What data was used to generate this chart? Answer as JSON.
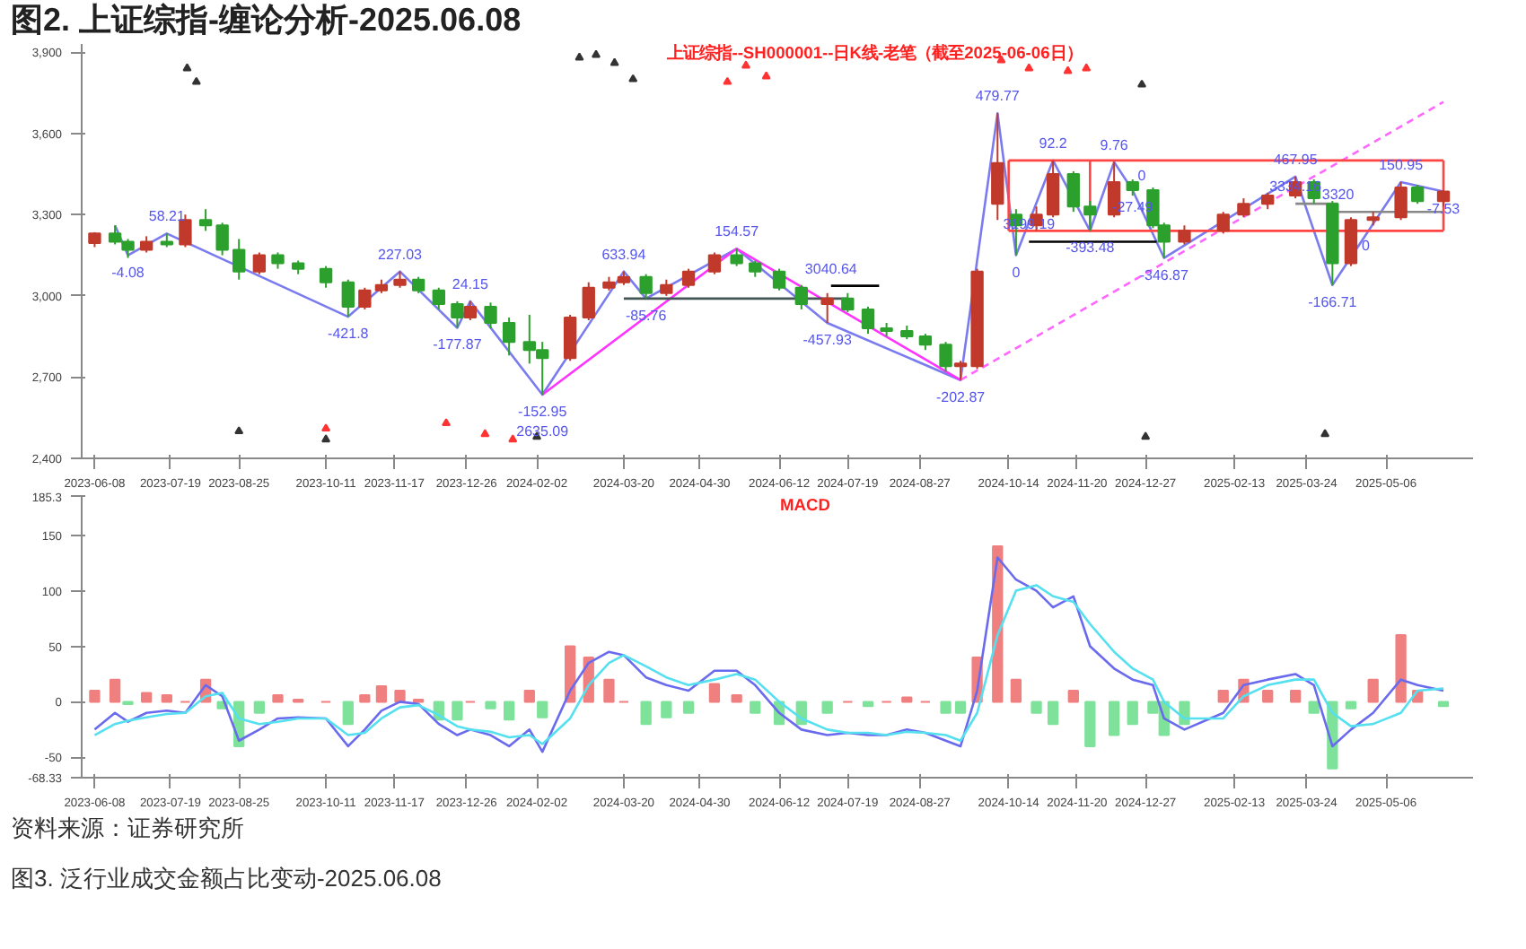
{
  "chart_data": [
    {
      "type": "candlestick",
      "title": "图2. 上证综指-缠论分析-2025.06.08",
      "subtitle": "上证综指--SH000001--日K线-老笔（截至2025-06-06日）",
      "x": [
        "2023-06-08",
        "2023-06-19",
        "2023-06-26",
        "2023-07-06",
        "2023-07-17",
        "2023-07-27",
        "2023-08-07",
        "2023-08-16",
        "2023-08-25",
        "2023-09-05",
        "2023-09-15",
        "2023-09-26",
        "2023-10-11",
        "2023-10-23",
        "2023-11-01",
        "2023-11-10",
        "2023-11-20",
        "2023-11-30",
        "2023-12-11",
        "2023-12-21",
        "2023-12-28",
        "2024-01-08",
        "2024-01-18",
        "2024-01-29",
        "2024-02-05",
        "2024-02-20",
        "2024-03-01",
        "2024-03-12",
        "2024-03-20",
        "2024-04-01",
        "2024-04-12",
        "2024-04-24",
        "2024-05-08",
        "2024-05-20",
        "2024-05-30",
        "2024-06-12",
        "2024-06-24",
        "2024-07-08",
        "2024-07-19",
        "2024-07-30",
        "2024-08-09",
        "2024-08-20",
        "2024-08-30",
        "2024-09-10",
        "2024-09-18",
        "2024-09-27",
        "2024-10-08",
        "2024-10-18",
        "2024-10-29",
        "2024-11-07",
        "2024-11-18",
        "2024-11-27",
        "2024-12-10",
        "2024-12-20",
        "2024-12-31",
        "2025-01-06",
        "2025-01-17",
        "2025-02-07",
        "2025-02-18",
        "2025-03-03",
        "2025-03-18",
        "2025-03-28",
        "2025-04-07",
        "2025-04-17",
        "2025-04-29",
        "2025-05-14",
        "2025-05-23",
        "2025-06-06"
      ],
      "ohlc": [
        [
          3195,
          3235,
          3180,
          3230
        ],
        [
          3230,
          3260,
          3190,
          3200
        ],
        [
          3200,
          3210,
          3140,
          3170
        ],
        [
          3170,
          3220,
          3160,
          3200
        ],
        [
          3200,
          3230,
          3180,
          3190
        ],
        [
          3190,
          3300,
          3180,
          3280
        ],
        [
          3280,
          3320,
          3240,
          3260
        ],
        [
          3260,
          3270,
          3150,
          3170
        ],
        [
          3170,
          3210,
          3060,
          3090
        ],
        [
          3090,
          3160,
          3080,
          3150
        ],
        [
          3150,
          3160,
          3100,
          3120
        ],
        [
          3120,
          3130,
          3080,
          3100
        ],
        [
          3100,
          3110,
          3030,
          3050
        ],
        [
          3050,
          3060,
          2923,
          2960
        ],
        [
          2960,
          3030,
          2950,
          3020
        ],
        [
          3020,
          3060,
          3010,
          3040
        ],
        [
          3040,
          3090,
          3030,
          3060
        ],
        [
          3060,
          3070,
          3010,
          3020
        ],
        [
          3020,
          3030,
          2950,
          2970
        ],
        [
          2970,
          2980,
          2882,
          2920
        ],
        [
          2920,
          2980,
          2910,
          2960
        ],
        [
          2960,
          2975,
          2880,
          2900
        ],
        [
          2900,
          2920,
          2780,
          2830
        ],
        [
          2830,
          2930,
          2750,
          2800
        ],
        [
          2800,
          2830,
          2635,
          2770
        ],
        [
          2770,
          2930,
          2760,
          2920
        ],
        [
          2920,
          3050,
          2910,
          3030
        ],
        [
          3030,
          3070,
          3020,
          3050
        ],
        [
          3050,
          3090,
          3040,
          3070
        ],
        [
          3070,
          3080,
          2990,
          3010
        ],
        [
          3010,
          3060,
          3000,
          3040
        ],
        [
          3040,
          3100,
          3030,
          3090
        ],
        [
          3090,
          3160,
          3080,
          3150
        ],
        [
          3150,
          3174,
          3110,
          3120
        ],
        [
          3120,
          3130,
          3070,
          3090
        ],
        [
          3090,
          3100,
          3020,
          3030
        ],
        [
          3030,
          3040,
          2950,
          2970
        ],
        [
          2970,
          3010,
          2900,
          2990
        ],
        [
          2990,
          3010,
          2940,
          2950
        ],
        [
          2950,
          2960,
          2860,
          2880
        ],
        [
          2880,
          2900,
          2850,
          2870
        ],
        [
          2870,
          2890,
          2840,
          2850
        ],
        [
          2850,
          2860,
          2800,
          2820
        ],
        [
          2820,
          2830,
          2720,
          2740
        ],
        [
          2740,
          2760,
          2689,
          2750
        ],
        [
          2740,
          3100,
          2730,
          3090
        ],
        [
          3340,
          3674,
          3280,
          3490
        ],
        [
          3300,
          3320,
          3150,
          3260
        ],
        [
          3260,
          3330,
          3240,
          3300
        ],
        [
          3300,
          3500,
          3290,
          3450
        ],
        [
          3450,
          3460,
          3310,
          3330
        ],
        [
          3330,
          3350,
          3240,
          3300
        ],
        [
          3300,
          3494,
          3290,
          3420
        ],
        [
          3420,
          3430,
          3370,
          3390
        ],
        [
          3390,
          3400,
          3250,
          3260
        ],
        [
          3260,
          3270,
          3140,
          3200
        ],
        [
          3200,
          3260,
          3190,
          3240
        ],
        [
          3240,
          3310,
          3230,
          3300
        ],
        [
          3300,
          3360,
          3290,
          3340
        ],
        [
          3340,
          3380,
          3320,
          3370
        ],
        [
          3370,
          3440,
          3360,
          3420
        ],
        [
          3420,
          3430,
          3340,
          3360
        ],
        [
          3340,
          3350,
          3040,
          3120
        ],
        [
          3120,
          3290,
          3110,
          3280
        ],
        [
          3280,
          3310,
          3260,
          3290
        ],
        [
          3290,
          3420,
          3280,
          3400
        ],
        [
          3400,
          3410,
          3340,
          3350
        ],
        [
          3350,
          3390,
          3330,
          3385
        ]
      ],
      "colors": [
        "#c0392b",
        "#2ca02c",
        "#2ca02c",
        "#c0392b",
        "#2ca02c",
        "#c0392b",
        "#2ca02c",
        "#2ca02c",
        "#2ca02c",
        "#c0392b",
        "#2ca02c",
        "#2ca02c",
        "#2ca02c",
        "#2ca02c",
        "#c0392b",
        "#c0392b",
        "#c0392b",
        "#2ca02c",
        "#2ca02c",
        "#2ca02c",
        "#c0392b",
        "#2ca02c",
        "#2ca02c",
        "#2ca02c",
        "#2ca02c",
        "#c0392b",
        "#c0392b",
        "#c0392b",
        "#c0392b",
        "#2ca02c",
        "#c0392b",
        "#c0392b",
        "#c0392b",
        "#2ca02c",
        "#2ca02c",
        "#2ca02c",
        "#2ca02c",
        "#c0392b",
        "#2ca02c",
        "#2ca02c",
        "#2ca02c",
        "#2ca02c",
        "#2ca02c",
        "#2ca02c",
        "#c0392b",
        "#c0392b",
        "#c0392b",
        "#2ca02c",
        "#c0392b",
        "#c0392b",
        "#2ca02c",
        "#2ca02c",
        "#c0392b",
        "#2ca02c",
        "#2ca02c",
        "#2ca02c",
        "#c0392b",
        "#c0392b",
        "#c0392b",
        "#c0392b",
        "#c0392b",
        "#2ca02c",
        "#2ca02c",
        "#c0392b",
        "#c0392b",
        "#c0392b",
        "#2ca02c",
        "#c0392b"
      ],
      "series": [
        {
          "type": "line",
          "color": "#7b7bf0",
          "line_style": "solid",
          "x": [
            "2023-06-19",
            "2023-06-26",
            "2023-07-17",
            "2023-10-23",
            "2023-11-20",
            "2023-12-21",
            "2023-12-28",
            "2024-02-05",
            "2024-03-20",
            "2024-04-01",
            "2024-05-20",
            "2024-07-08",
            "2024-09-18",
            "2024-10-08",
            "2024-10-18",
            "2024-11-07",
            "2024-11-27",
            "2024-12-10",
            "2024-12-20",
            "2025-01-06",
            "2025-03-18",
            "2025-04-07",
            "2025-05-14",
            "2025-06-06"
          ],
          "values": [
            3260,
            3150,
            3230,
            2923,
            3090,
            2882,
            2980,
            2635,
            3090,
            2990,
            3174,
            2900,
            2689,
            3674,
            3150,
            3500,
            3240,
            3494,
            3390,
            3140,
            3440,
            3040,
            3420,
            3385
          ]
        },
        {
          "type": "line",
          "color": "#ff33ff",
          "line_style": "solid",
          "x": [
            "2024-02-05",
            "2024-05-20",
            "2024-09-18"
          ],
          "values": [
            2635,
            3174,
            2689
          ]
        },
        {
          "type": "line",
          "color": "#ff66ff",
          "line_style": "dashed",
          "x": [
            "2024-09-18",
            "2025-06-06"
          ],
          "values": [
            2689,
            3716
          ]
        },
        {
          "type": "line",
          "color": "#ff4444",
          "line_style": "solid",
          "x": [
            "2024-10-14",
            "2025-06-06"
          ],
          "values": [
            3500,
            3500
          ]
        },
        {
          "type": "line",
          "color": "#ff4444",
          "line_style": "solid",
          "x": [
            "2024-10-14",
            "2025-06-06"
          ],
          "values": [
            3240,
            3240
          ]
        },
        {
          "type": "line",
          "color": "#ff4444",
          "line_style": "solid",
          "x": [
            "2024-10-14",
            "2024-10-14"
          ],
          "values": [
            3240,
            3500
          ]
        },
        {
          "type": "line",
          "color": "#ff4444",
          "line_style": "solid",
          "x": [
            "2025-06-06",
            "2025-06-06"
          ],
          "values": [
            3240,
            3500
          ]
        },
        {
          "type": "line",
          "color": "#ff4444",
          "line_style": "solid",
          "x": [
            "2024-11-27",
            "2024-11-27"
          ],
          "values": [
            3240,
            3500
          ]
        },
        {
          "type": "line",
          "color": "#445555",
          "line_style": "solid",
          "x": [
            "2024-03-20",
            "2024-07-19"
          ],
          "values": [
            2990,
            2990
          ]
        },
        {
          "type": "line",
          "color": "#000000",
          "line_style": "solid",
          "x": [
            "2024-07-10",
            "2024-08-05"
          ],
          "values": [
            3037,
            3037
          ]
        },
        {
          "type": "line",
          "color": "#000000",
          "line_style": "solid",
          "x": [
            "2024-10-25",
            "2025-01-02"
          ],
          "values": [
            3200,
            3200
          ]
        },
        {
          "type": "line",
          "color": "#888888",
          "line_style": "solid",
          "x": [
            "2025-03-18",
            "2025-04-10"
          ],
          "values": [
            3340,
            3340
          ]
        },
        {
          "type": "line",
          "color": "#888888",
          "line_style": "solid",
          "x": [
            "2025-04-10",
            "2025-06-06"
          ],
          "values": [
            3310,
            3310
          ]
        },
        {
          "type": "scatter",
          "color": "#333333",
          "marker": "triangle",
          "x": [
            "2023-07-28",
            "2023-08-02",
            "2024-02-25",
            "2024-03-05",
            "2024-03-15",
            "2024-03-25",
            "2024-12-25",
            "2023-08-25",
            "2023-10-11",
            "2024-02-02",
            "2024-12-27",
            "2025-04-03"
          ],
          "values": [
            3840,
            3790,
            3880,
            3890,
            3860,
            3800,
            3780,
            2500,
            2470,
            2480,
            2480,
            2490
          ]
        },
        {
          "type": "scatter",
          "color": "#ff3333",
          "marker": "triangle",
          "x": [
            "2024-05-15",
            "2024-05-25",
            "2024-06-05",
            "2024-10-10",
            "2024-10-25",
            "2024-11-15",
            "2024-11-25",
            "2023-10-11",
            "2023-12-15",
            "2024-01-05",
            "2024-01-20"
          ],
          "values": [
            3790,
            3850,
            3810,
            3870,
            3840,
            3830,
            3840,
            2510,
            2530,
            2490,
            2470
          ]
        }
      ],
      "xlim": [
        "2023-06-01",
        "2025-06-22"
      ],
      "ylim": [
        2400,
        3930
      ],
      "xticks": [
        {
          "value": "2023-06-08",
          "label": "2023-06-08"
        },
        {
          "value": "2023-07-19",
          "label": "2023-07-19"
        },
        {
          "value": "2023-08-25",
          "label": "2023-08-25"
        },
        {
          "value": "2023-10-11",
          "label": "2023-10-11"
        },
        {
          "value": "2023-11-17",
          "label": "2023-11-17"
        },
        {
          "value": "2023-12-26",
          "label": "2023-12-26"
        },
        {
          "value": "2024-02-02",
          "label": "2024-02-02"
        },
        {
          "value": "2024-03-20",
          "label": "2024-03-20"
        },
        {
          "value": "2024-04-30",
          "label": "2024-04-30"
        },
        {
          "value": "2024-06-12",
          "label": "2024-06-12"
        },
        {
          "value": "2024-07-19",
          "label": "2024-07-19"
        },
        {
          "value": "2024-08-27",
          "label": "2024-08-27"
        },
        {
          "value": "2024-10-14",
          "label": "2024-10-14"
        },
        {
          "value": "2024-11-20",
          "label": "2024-11-20"
        },
        {
          "value": "2024-12-27",
          "label": "2024-12-27"
        },
        {
          "value": "2025-02-13",
          "label": "2025-02-13"
        },
        {
          "value": "2025-03-24",
          "label": "2025-03-24"
        },
        {
          "value": "2025-05-06",
          "label": "2025-05-06"
        }
      ],
      "yticks": [
        {
          "value": 2400,
          "label": "2,400"
        },
        {
          "value": 2700,
          "label": "2,700"
        },
        {
          "value": 3000,
          "label": "3,000"
        },
        {
          "value": 3300,
          "label": "3,300"
        },
        {
          "value": 3600,
          "label": "3,600"
        },
        {
          "value": 3900,
          "label": "3,900"
        }
      ],
      "annotations": [
        {
          "text": "58.21",
          "x": "2023-07-17",
          "y": 3230
        },
        {
          "text": "-4.08",
          "x": "2023-06-26",
          "y": 3150
        },
        {
          "text": "227.03",
          "x": "2023-11-20",
          "y": 3090
        },
        {
          "text": "-421.8",
          "x": "2023-10-23",
          "y": 2923
        },
        {
          "text": "24.15",
          "x": "2023-12-28",
          "y": 2980
        },
        {
          "text": "-177.87",
          "x": "2023-12-21",
          "y": 2882
        },
        {
          "text": "-152.95",
          "x": "2024-02-05",
          "y": 2635
        },
        {
          "text": "2635.09",
          "x": "2024-02-05",
          "y": 2635
        },
        {
          "text": "633.94",
          "x": "2024-03-20",
          "y": 3090
        },
        {
          "text": "-85.76",
          "x": "2024-04-01",
          "y": 2990
        },
        {
          "text": "154.57",
          "x": "2024-05-20",
          "y": 3174
        },
        {
          "text": "3040.64",
          "x": "2024-07-10",
          "y": 3037
        },
        {
          "text": "-457.93",
          "x": "2024-07-08",
          "y": 2900
        },
        {
          "text": "-202.87",
          "x": "2024-09-18",
          "y": 2689
        },
        {
          "text": "479.77",
          "x": "2024-10-08",
          "y": 3674
        },
        {
          "text": "0",
          "x": "2024-10-18",
          "y": 3150
        },
        {
          "text": "92.2",
          "x": "2024-11-07",
          "y": 3500
        },
        {
          "text": "3199.19",
          "x": "2024-10-25",
          "y": 3200
        },
        {
          "text": "-393.48",
          "x": "2024-11-27",
          "y": 3240
        },
        {
          "text": "9.76",
          "x": "2024-12-10",
          "y": 3494
        },
        {
          "text": "0",
          "x": "2024-12-25",
          "y": 3500
        },
        {
          "text": "-27.49",
          "x": "2024-12-20",
          "y": 3390
        },
        {
          "text": "-346.87",
          "x": "2025-01-06",
          "y": 3140
        },
        {
          "text": "467.95",
          "x": "2025-03-18",
          "y": 3440
        },
        {
          "text": "3334.16",
          "x": "2025-03-18",
          "y": 3340
        },
        {
          "text": "3320",
          "x": "2025-04-10",
          "y": 3310
        },
        {
          "text": "0",
          "x": "2025-04-25",
          "y": 3240
        },
        {
          "text": "-166.71",
          "x": "2025-04-07",
          "y": 3040
        },
        {
          "text": "150.95",
          "x": "2025-05-14",
          "y": 3420
        },
        {
          "text": "-7.53",
          "x": "2025-06-06",
          "y": 3385
        }
      ],
      "grid": false
    },
    {
      "type": "bar",
      "title": "MACD",
      "x": [
        "2023-06-08",
        "2023-06-19",
        "2023-06-26",
        "2023-07-06",
        "2023-07-17",
        "2023-07-27",
        "2023-08-07",
        "2023-08-16",
        "2023-08-25",
        "2023-09-05",
        "2023-09-15",
        "2023-09-26",
        "2023-10-11",
        "2023-10-23",
        "2023-11-01",
        "2023-11-10",
        "2023-11-20",
        "2023-11-30",
        "2023-12-11",
        "2023-12-21",
        "2023-12-28",
        "2024-01-08",
        "2024-01-18",
        "2024-01-29",
        "2024-02-05",
        "2024-02-20",
        "2024-03-01",
        "2024-03-12",
        "2024-03-20",
        "2024-04-01",
        "2024-04-12",
        "2024-04-24",
        "2024-05-08",
        "2024-05-20",
        "2024-05-30",
        "2024-06-12",
        "2024-06-24",
        "2024-07-08",
        "2024-07-19",
        "2024-07-30",
        "2024-08-09",
        "2024-08-20",
        "2024-08-30",
        "2024-09-10",
        "2024-09-18",
        "2024-09-27",
        "2024-10-08",
        "2024-10-18",
        "2024-10-29",
        "2024-11-07",
        "2024-11-18",
        "2024-11-27",
        "2024-12-10",
        "2024-12-20",
        "2024-12-31",
        "2025-01-06",
        "2025-01-17",
        "2025-02-07",
        "2025-02-18",
        "2025-03-03",
        "2025-03-18",
        "2025-03-28",
        "2025-04-07",
        "2025-04-17",
        "2025-04-29",
        "2025-05-14",
        "2025-05-23",
        "2025-06-06"
      ],
      "series": [
        {
          "type": "bar",
          "values": [
            10,
            20,
            -2,
            8,
            6,
            0,
            20,
            -6,
            -40,
            -10,
            6,
            2,
            0,
            -20,
            6,
            14,
            10,
            2,
            -16,
            -16,
            0,
            -6,
            -16,
            10,
            -14,
            50,
            40,
            20,
            0,
            -20,
            -14,
            -10,
            16,
            6,
            -10,
            -20,
            -20,
            -10,
            0,
            -4,
            0,
            4,
            0,
            -10,
            -10,
            40,
            140,
            20,
            -10,
            -20,
            10,
            -40,
            -30,
            -20,
            -10,
            -30,
            -20,
            10,
            20,
            10,
            10,
            -10,
            -60,
            -6,
            20,
            60,
            10,
            -4
          ],
          "colors": [
            "#f08080",
            "#f08080",
            "#7ee29a",
            "#f08080",
            "#f08080",
            "#f08080",
            "#f08080",
            "#7ee29a",
            "#7ee29a",
            "#7ee29a",
            "#f08080",
            "#f08080",
            "#f08080",
            "#7ee29a",
            "#f08080",
            "#f08080",
            "#f08080",
            "#f08080",
            "#7ee29a",
            "#7ee29a",
            "#f08080",
            "#7ee29a",
            "#7ee29a",
            "#f08080",
            "#7ee29a",
            "#f08080",
            "#f08080",
            "#f08080",
            "#f08080",
            "#7ee29a",
            "#7ee29a",
            "#7ee29a",
            "#f08080",
            "#f08080",
            "#7ee29a",
            "#7ee29a",
            "#7ee29a",
            "#7ee29a",
            "#f08080",
            "#7ee29a",
            "#f08080",
            "#f08080",
            "#f08080",
            "#7ee29a",
            "#7ee29a",
            "#f08080",
            "#f08080",
            "#f08080",
            "#7ee29a",
            "#7ee29a",
            "#f08080",
            "#7ee29a",
            "#7ee29a",
            "#7ee29a",
            "#7ee29a",
            "#7ee29a",
            "#7ee29a",
            "#f08080",
            "#f08080",
            "#f08080",
            "#f08080",
            "#7ee29a",
            "#7ee29a",
            "#7ee29a",
            "#f08080",
            "#f08080",
            "#f08080",
            "#7ee29a"
          ]
        },
        {
          "type": "line",
          "color": "#6a6aee",
          "values": [
            -25,
            -10,
            -18,
            -10,
            -8,
            -10,
            15,
            5,
            -35,
            -25,
            -15,
            -14,
            -15,
            -40,
            -25,
            -8,
            0,
            -2,
            -20,
            -30,
            -25,
            -30,
            -40,
            -25,
            -45,
            10,
            35,
            45,
            42,
            22,
            15,
            10,
            28,
            28,
            15,
            -10,
            -25,
            -30,
            -28,
            -30,
            -30,
            -25,
            -28,
            -35,
            -40,
            10,
            130,
            110,
            100,
            85,
            95,
            50,
            30,
            20,
            15,
            -15,
            -25,
            -10,
            15,
            20,
            25,
            15,
            -40,
            -25,
            -10,
            20,
            15,
            10
          ]
        },
        {
          "type": "line",
          "color": "#55e0f0",
          "values": [
            -30,
            -20,
            -17,
            -14,
            -11,
            -10,
            5,
            8,
            -15,
            -20,
            -18,
            -15,
            -15,
            -30,
            -28,
            -15,
            -5,
            -3,
            -12,
            -22,
            -25,
            -27,
            -32,
            -30,
            -38,
            -15,
            15,
            35,
            42,
            32,
            22,
            15,
            20,
            25,
            20,
            0,
            -15,
            -25,
            -28,
            -28,
            -30,
            -27,
            -28,
            -30,
            -35,
            -10,
            60,
            100,
            105,
            95,
            90,
            70,
            45,
            30,
            20,
            0,
            -15,
            -15,
            5,
            15,
            20,
            20,
            -10,
            -22,
            -20,
            -10,
            10,
            12
          ]
        }
      ],
      "xlim": [
        "2023-06-01",
        "2025-06-22"
      ],
      "ylim": [
        -68.33,
        185.3
      ],
      "xticks": [
        {
          "value": "2023-06-08",
          "label": "2023-06-08"
        },
        {
          "value": "2023-07-19",
          "label": "2023-07-19"
        },
        {
          "value": "2023-08-25",
          "label": "2023-08-25"
        },
        {
          "value": "2023-10-11",
          "label": "2023-10-11"
        },
        {
          "value": "2023-11-17",
          "label": "2023-11-17"
        },
        {
          "value": "2023-12-26",
          "label": "2023-12-26"
        },
        {
          "value": "2024-02-02",
          "label": "2024-02-02"
        },
        {
          "value": "2024-03-20",
          "label": "2024-03-20"
        },
        {
          "value": "2024-04-30",
          "label": "2024-04-30"
        },
        {
          "value": "2024-06-12",
          "label": "2024-06-12"
        },
        {
          "value": "2024-07-19",
          "label": "2024-07-19"
        },
        {
          "value": "2024-08-27",
          "label": "2024-08-27"
        },
        {
          "value": "2024-10-14",
          "label": "2024-10-14"
        },
        {
          "value": "2024-11-20",
          "label": "2024-11-20"
        },
        {
          "value": "2024-12-27",
          "label": "2024-12-27"
        },
        {
          "value": "2025-02-13",
          "label": "2025-02-13"
        },
        {
          "value": "2025-03-24",
          "label": "2025-03-24"
        },
        {
          "value": "2025-05-06",
          "label": "2025-05-06"
        }
      ],
      "yticks": [
        -68.33,
        -50,
        0,
        50,
        100,
        150,
        185.3
      ],
      "annotations": [
        "资料来源：证券研究所",
        "图3. 泛行业成交金额占比变动-2025.06.08"
      ],
      "grid": false
    }
  ]
}
